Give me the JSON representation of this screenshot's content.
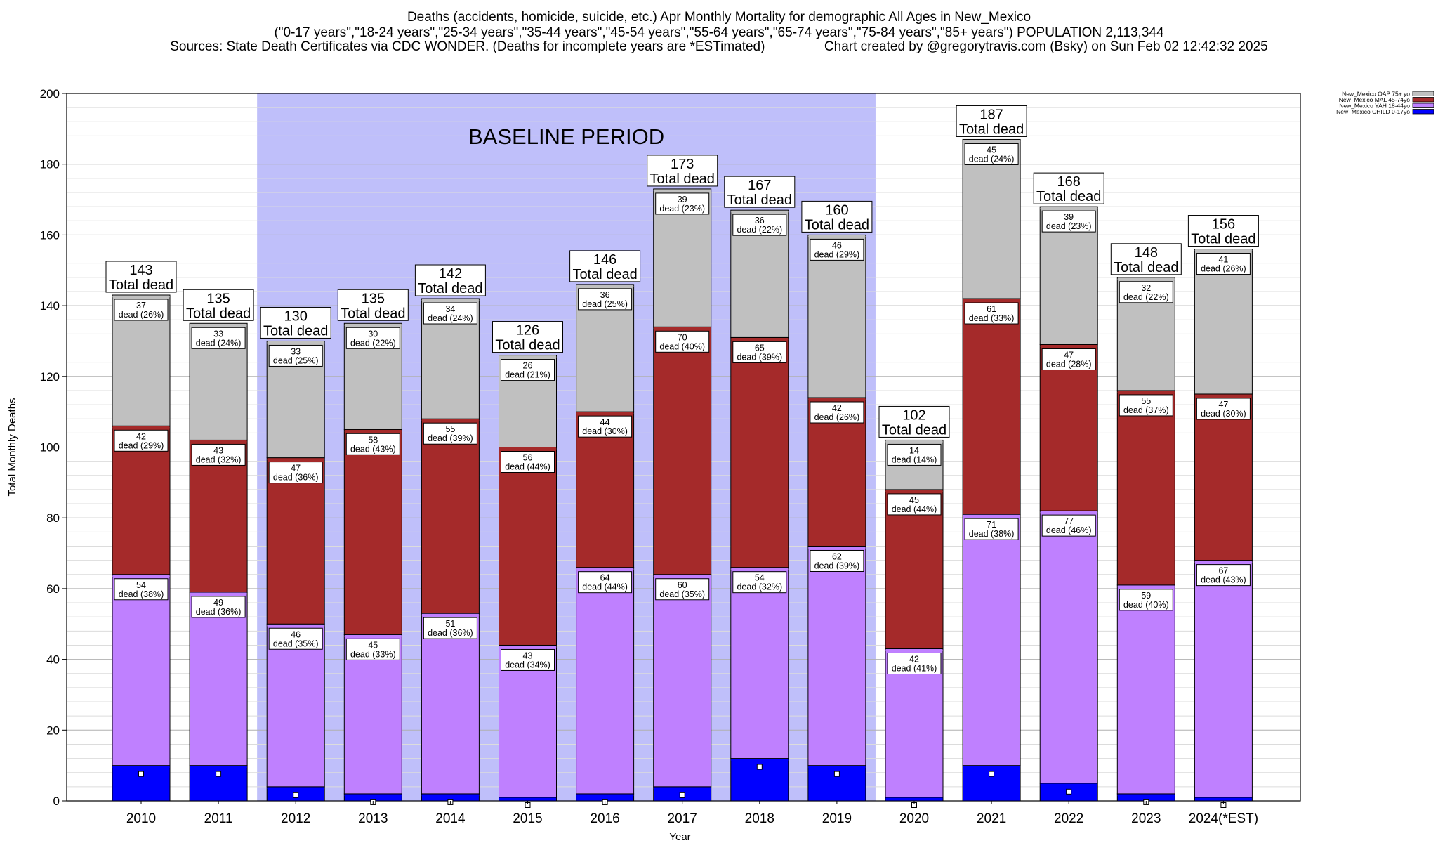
{
  "header": {
    "title": "Deaths (accidents, homicide, suicide, etc.) Apr Monthly Mortality for demographic All Ages in New_Mexico",
    "subtitle": "(\"0-17 years\",\"18-24 years\",\"25-34 years\",\"35-44 years\",\"45-54 years\",\"55-64 years\",\"65-74 years\",\"75-84 years\",\"85+ years\") POPULATION 2,113,344",
    "sources": "Sources: State Death Certificates via CDC WONDER. (Deaths for incomplete years are *ESTimated)                Chart created by @gregorytravis.com (Bsky) on Sun Feb 02 12:42:32 2025"
  },
  "chart_data": {
    "type": "bar",
    "stacked": true,
    "xlabel": "Year",
    "ylabel": "Total Monthly Deaths",
    "ylim": [
      0,
      200
    ],
    "yticks": [
      "0",
      "20",
      "40",
      "60",
      "80",
      "100",
      "120",
      "140",
      "160",
      "180",
      "200"
    ],
    "grid": true,
    "legend_position": "top-right",
    "baseline_label": "BASELINE PERIOD",
    "baseline_range": [
      "2012",
      "2019"
    ],
    "total_suffix": "Total dead",
    "categories": [
      "2010",
      "2011",
      "2012",
      "2013",
      "2014",
      "2015",
      "2016",
      "2017",
      "2018",
      "2019",
      "2020",
      "2021",
      "2022",
      "2023",
      "2024(*EST)"
    ],
    "totals": [
      143,
      135,
      130,
      135,
      142,
      126,
      146,
      173,
      167,
      160,
      102,
      187,
      168,
      148,
      156
    ],
    "series": [
      {
        "name": "New_Mexico CHILD 0-17yo",
        "color": "#0000ff",
        "values": [
          10,
          10,
          4,
          2,
          2,
          1,
          2,
          4,
          12,
          10,
          1,
          10,
          5,
          2,
          1
        ],
        "labels": []
      },
      {
        "name": "New_Mexico YAH 18-44yo",
        "color": "#bf80ff",
        "values": [
          54,
          49,
          46,
          45,
          51,
          43,
          64,
          60,
          54,
          62,
          42,
          71,
          77,
          59,
          67
        ],
        "labels": [
          [
            "54",
            "dead (38%)"
          ],
          [
            "49",
            "dead (36%)"
          ],
          [
            "46",
            "dead (35%)"
          ],
          [
            "45",
            "dead (33%)"
          ],
          [
            "51",
            "dead (36%)"
          ],
          [
            "43",
            "dead (34%)"
          ],
          [
            "64",
            "dead (44%)"
          ],
          [
            "60",
            "dead (35%)"
          ],
          [
            "54",
            "dead (32%)"
          ],
          [
            "62",
            "dead (39%)"
          ],
          [
            "42",
            "dead (41%)"
          ],
          [
            "71",
            "dead (38%)"
          ],
          [
            "77",
            "dead (46%)"
          ],
          [
            "59",
            "dead (40%)"
          ],
          [
            "67",
            "dead (43%)"
          ]
        ]
      },
      {
        "name": "New_Mexico MAL 45-74yo",
        "color": "#a52a2a",
        "values": [
          42,
          43,
          47,
          58,
          55,
          56,
          44,
          70,
          65,
          42,
          45,
          61,
          47,
          55,
          47
        ],
        "labels": [
          [
            "42",
            "dead (29%)"
          ],
          [
            "43",
            "dead (32%)"
          ],
          [
            "47",
            "dead (36%)"
          ],
          [
            "58",
            "dead (43%)"
          ],
          [
            "55",
            "dead (39%)"
          ],
          [
            "56",
            "dead (44%)"
          ],
          [
            "44",
            "dead (30%)"
          ],
          [
            "70",
            "dead (40%)"
          ],
          [
            "65",
            "dead (39%)"
          ],
          [
            "42",
            "dead (26%)"
          ],
          [
            "45",
            "dead (44%)"
          ],
          [
            "61",
            "dead (33%)"
          ],
          [
            "47",
            "dead (28%)"
          ],
          [
            "55",
            "dead (37%)"
          ],
          [
            "47",
            "dead (30%)"
          ]
        ]
      },
      {
        "name": "New_Mexico OAP 75+ yo",
        "color": "#c0c0c0",
        "values": [
          37,
          33,
          33,
          30,
          34,
          26,
          36,
          39,
          36,
          46,
          14,
          45,
          39,
          32,
          41
        ],
        "labels": [
          [
            "37",
            "dead (26%)"
          ],
          [
            "33",
            "dead (24%)"
          ],
          [
            "33",
            "dead (25%)"
          ],
          [
            "30",
            "dead (22%)"
          ],
          [
            "34",
            "dead (24%)"
          ],
          [
            "26",
            "dead (21%)"
          ],
          [
            "36",
            "dead (25%)"
          ],
          [
            "39",
            "dead (23%)"
          ],
          [
            "36",
            "dead (22%)"
          ],
          [
            "46",
            "dead (29%)"
          ],
          [
            "14",
            "dead (14%)"
          ],
          [
            "45",
            "dead (24%)"
          ],
          [
            "39",
            "dead (23%)"
          ],
          [
            "32",
            "dead (22%)"
          ],
          [
            "41",
            "dead (26%)"
          ]
        ]
      }
    ]
  }
}
